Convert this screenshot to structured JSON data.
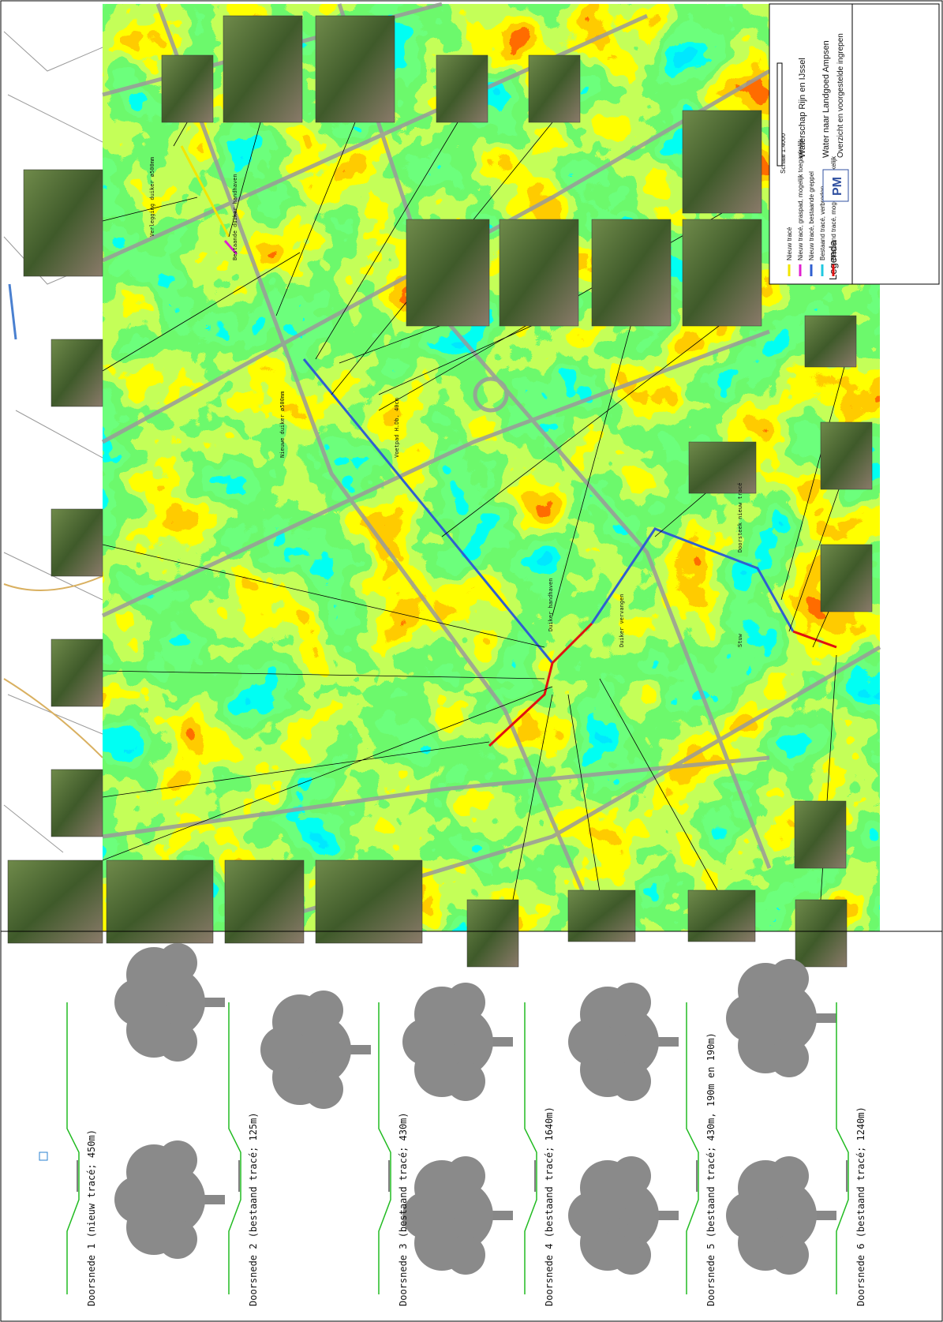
{
  "legend": {
    "title": "Legenda",
    "items": [
      {
        "label": "Nieuw tracé",
        "color": "#f2e600"
      },
      {
        "label": "Nieuw tracé, graspad, mogelijk toegankelijk",
        "color": "#e020d0"
      },
      {
        "label": "Nieuw tracé, bestaande greppel",
        "color": "#2f5fd0"
      },
      {
        "label": "Bestaand tracé, verbreden",
        "color": "#20c8e0"
      },
      {
        "label": "Bestaand tracé, mogelijk toegankelijk",
        "color": "#e01010"
      }
    ]
  },
  "title_block": {
    "scale": "Schaal 1:4000",
    "client": "Waterschap Rijn en IJssel",
    "project": "Water naar Landgoed Ampsen",
    "subject": "Overzicht en voorgestelde ingrepen",
    "logo": "PM"
  },
  "annotations": [
    "Verlegging duiker ø500mm",
    "Bestaande duiker handhaven",
    "Voetpad H.Db. 40cm",
    "Nieuwe duiker ø500mm",
    "Duiker handhaven",
    "Duiker vervangen",
    "Stuw",
    "Doorsteek nieuw tracé"
  ],
  "sections": [
    "Doorsnede 1 (nieuw tracé; 450m)",
    "Doorsnede 2 (bestaand tracé; 125m)",
    "Doorsnede 3 (bestaand tracé; 430m)",
    "Doorsnede 4 (bestaand tracé; 1640m)",
    "Doorsnede 5 (bestaand tracé; 430m, 190m en 190m)",
    "Doorsnede 6 (bestaand tracé; 1240m)"
  ]
}
